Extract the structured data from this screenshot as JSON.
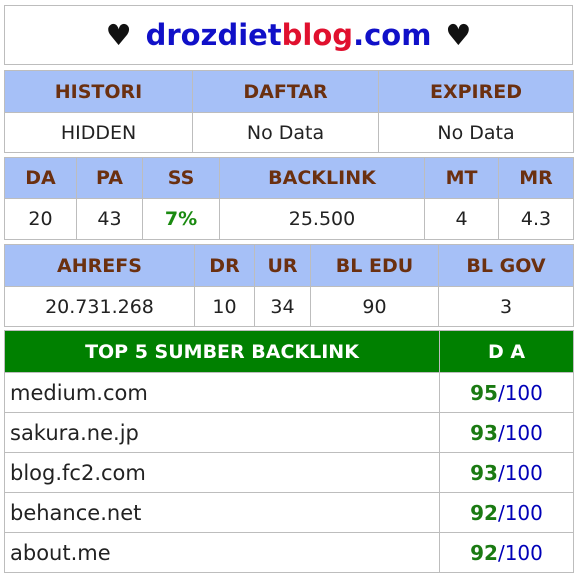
{
  "header": {
    "heart_left": "♥",
    "heart_right": "♥",
    "domain_part1": "drozdiet",
    "domain_part2": "blog",
    "domain_part3": ".com",
    "color_part1": "#1010c8",
    "color_part2": "#e0102e",
    "color_part3": "#1010c8"
  },
  "registry": {
    "headers": [
      "HISTORI",
      "DAFTAR",
      "EXPIRED"
    ],
    "values": [
      "HIDDEN",
      "No Data",
      "No Data"
    ]
  },
  "metrics": {
    "headers": [
      "DA",
      "PA",
      "SS",
      "BACKLINK",
      "MT",
      "MR"
    ],
    "values": [
      "20",
      "43",
      "7%",
      "25.500",
      "4",
      "4.3"
    ],
    "ss_color": "#1a8a10"
  },
  "ahrefs": {
    "headers": [
      "AHREFS",
      "DR",
      "UR",
      "BL EDU",
      "BL GOV"
    ],
    "values": [
      "20.731.268",
      "10",
      "34",
      "90",
      "3"
    ]
  },
  "top_backlinks": {
    "header_source": "TOP 5 SUMBER BACKLINK",
    "header_da": "D A",
    "da_separator": "/",
    "rows": [
      {
        "source": "medium.com",
        "da": "95",
        "max": "100"
      },
      {
        "source": "sakura.ne.jp",
        "da": "93",
        "max": "100"
      },
      {
        "source": "blog.fc2.com",
        "da": "93",
        "max": "100"
      },
      {
        "source": "behance.net",
        "da": "92",
        "max": "100"
      },
      {
        "source": "about.me",
        "da": "92",
        "max": "100"
      }
    ]
  }
}
